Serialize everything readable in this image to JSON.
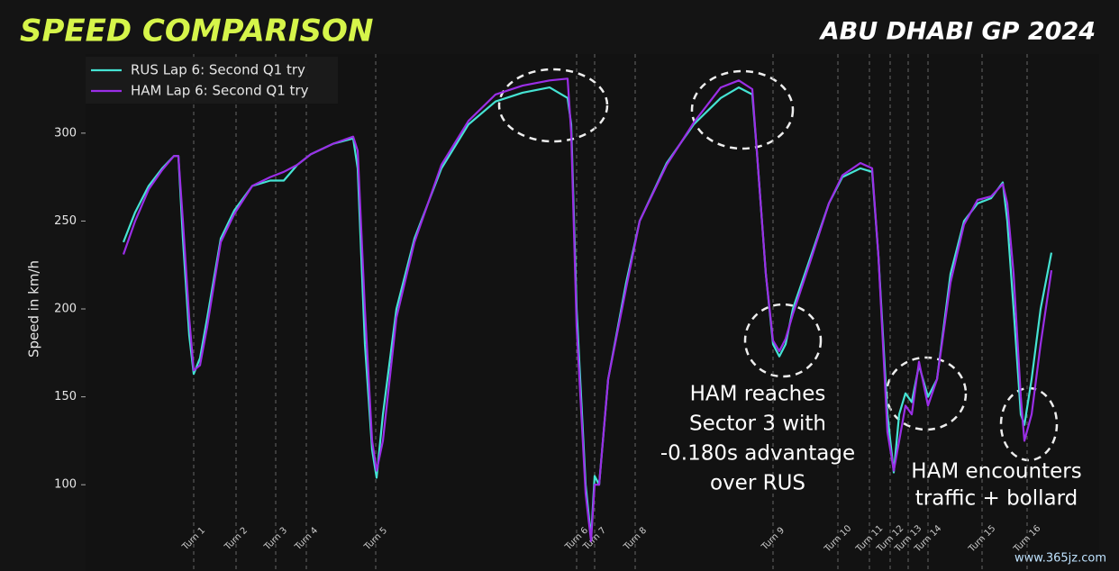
{
  "header": {
    "title": "SPEED COMPARISON",
    "event": "ABU DHABI GP 2024"
  },
  "chart_data": {
    "type": "line",
    "y_label": "Speed in km/h",
    "x": [
      42,
      55,
      70,
      85,
      98,
      103,
      108,
      115,
      120,
      127,
      135,
      150,
      165,
      185,
      205,
      220,
      235,
      250,
      275,
      297,
      302,
      310,
      318,
      323,
      330,
      345,
      365,
      395,
      425,
      455,
      485,
      515,
      535,
      539,
      545,
      555,
      561,
      565,
      570,
      580,
      600,
      615,
      645,
      675,
      705,
      725,
      740,
      745,
      755,
      763,
      770,
      777,
      785,
      805,
      825,
      840,
      860,
      873,
      880,
      890,
      897,
      903,
      910,
      917,
      925,
      935,
      945,
      960,
      975,
      990,
      1005,
      1018,
      1023,
      1030,
      1038,
      1042,
      1050,
      1060,
      1072
    ],
    "series": [
      {
        "name": "RUS Lap 6: Second Q1 try",
        "color": "#45e3d3",
        "values": [
          238,
          255,
          270,
          280,
          287,
          287,
          240,
          185,
          163,
          172,
          195,
          240,
          256,
          270,
          273,
          273,
          282,
          288,
          294,
          297,
          280,
          180,
          120,
          104,
          140,
          200,
          240,
          280,
          305,
          318,
          323,
          326,
          320,
          305,
          200,
          100,
          70,
          105,
          100,
          160,
          215,
          250,
          283,
          305,
          320,
          326,
          322,
          290,
          220,
          180,
          173,
          180,
          200,
          230,
          260,
          275,
          280,
          278,
          230,
          140,
          107,
          140,
          152,
          147,
          168,
          150,
          160,
          220,
          250,
          260,
          263,
          272,
          250,
          200,
          140,
          134,
          160,
          200,
          232
        ]
      },
      {
        "name": "HAM Lap 6: Second Q1 try",
        "color": "#9a2ee6",
        "values": [
          231,
          250,
          268,
          279,
          287,
          287,
          250,
          195,
          165,
          168,
          190,
          238,
          254,
          270,
          275,
          278,
          282,
          288,
          294,
          298,
          290,
          200,
          125,
          108,
          125,
          195,
          238,
          282,
          307,
          322,
          327,
          330,
          331,
          300,
          190,
          95,
          68,
          100,
          100,
          160,
          212,
          250,
          282,
          306,
          326,
          330,
          325,
          290,
          220,
          182,
          176,
          183,
          197,
          228,
          260,
          276,
          283,
          280,
          230,
          130,
          108,
          125,
          145,
          140,
          170,
          145,
          160,
          215,
          248,
          262,
          264,
          271,
          260,
          220,
          150,
          125,
          140,
          180,
          222
        ]
      }
    ],
    "xlim": [
      0,
      1125
    ],
    "ylim": [
      54,
      345
    ],
    "yticks": [
      100,
      150,
      200,
      250,
      300
    ],
    "turns": {
      "labels": [
        "Turn 1",
        "Turn 2",
        "Turn 3",
        "Turn 4",
        "Turn 5",
        "Turn 6",
        "Turn 7",
        "Turn 8",
        "Turn 9",
        "Turn 10",
        "Turn 11",
        "Turn 12",
        "Turn 13",
        "Turn 14",
        "Turn 15",
        "Turn 16"
      ],
      "x": [
        120,
        167,
        211,
        245,
        322,
        545,
        565,
        610,
        763,
        835,
        870,
        893,
        913,
        935,
        995,
        1045
      ]
    },
    "annotations": [
      {
        "lines": [
          "HAM reaches",
          "Sector 3 with",
          "-0.180s advantage",
          "over RUS"
        ]
      },
      {
        "lines": [
          "HAM encounters",
          "traffic + bollard"
        ]
      }
    ]
  },
  "watermark": "www.365jz.com"
}
